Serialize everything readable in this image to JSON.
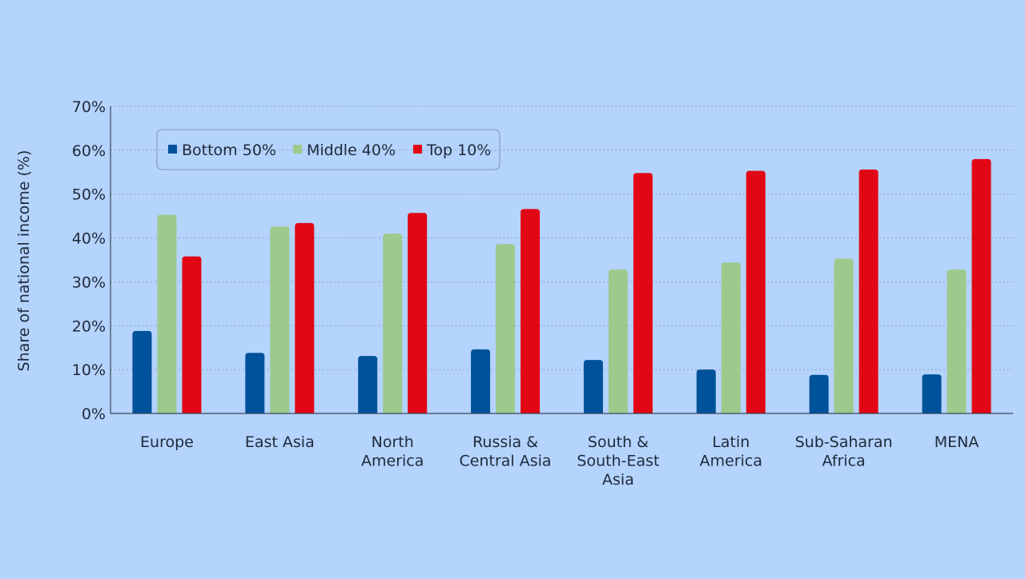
{
  "chart_data": {
    "type": "bar",
    "ylabel": "Share of national income (%)",
    "ylim": [
      0,
      70
    ],
    "yticks": [
      "0%",
      "10%",
      "20%",
      "30%",
      "40%",
      "50%",
      "60%",
      "70%"
    ],
    "ytick_values": [
      0,
      10,
      20,
      30,
      40,
      50,
      60,
      70
    ],
    "categories": [
      [
        "Europe"
      ],
      [
        "East Asia"
      ],
      [
        "North",
        "America"
      ],
      [
        "Russia &",
        "Central Asia"
      ],
      [
        "South &",
        "South-East",
        "Asia"
      ],
      [
        "Latin",
        "America"
      ],
      [
        "Sub-Saharan",
        "Africa"
      ],
      [
        "MENA"
      ]
    ],
    "series": [
      {
        "name": "Bottom 50%",
        "color": "#00529b",
        "values": [
          18.8,
          13.8,
          13.1,
          14.6,
          12.2,
          10.0,
          8.8,
          8.9
        ]
      },
      {
        "name": "Middle 40%",
        "color": "#9cca8c",
        "values": [
          45.3,
          42.6,
          41.0,
          38.6,
          32.8,
          34.4,
          35.3,
          32.8
        ]
      },
      {
        "name": "Top 10%",
        "color": "#e20714",
        "values": [
          35.8,
          43.4,
          45.7,
          46.6,
          54.8,
          55.3,
          55.6,
          58.0
        ]
      }
    ],
    "legend_position": "top-left",
    "grid": true
  }
}
